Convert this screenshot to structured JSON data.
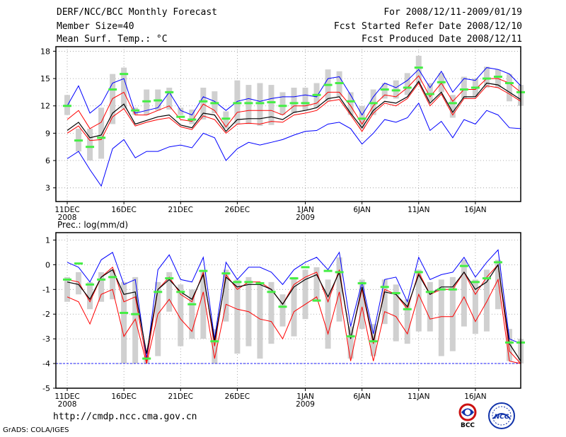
{
  "header": {
    "title": "DERF/NCC/BCC Monthly Forecast",
    "member_size": "Member Size=40",
    "variable": "Mean Surf. Temp.: °C",
    "period": "For 2008/12/11-2009/01/19",
    "refer_date": "Fcst Started Refer Date 2008/12/10",
    "produced_date": "Fcst Produced Date 2008/12/11"
  },
  "footer": {
    "url": "http://cmdp.ncc.cma.gov.cn",
    "credit": "GrADS: COLA/IGES"
  },
  "logos": {
    "bcc": "BCC",
    "ncc": "NCC"
  },
  "colors": {
    "max_min": "#0000ff",
    "spread": "#ff0000",
    "mean": "#000000",
    "obs_mark": "#44ee44",
    "box": "#d0d0d0"
  },
  "chart_data": [
    {
      "type": "line",
      "title": "Mean Surf. Temp.: °C",
      "xlabel": "",
      "ylabel": "",
      "x_tick_labels": [
        {
          "day": 0,
          "label": "11DEC",
          "sub": "2008"
        },
        {
          "day": 5,
          "label": "16DEC",
          "sub": ""
        },
        {
          "day": 10,
          "label": "21DEC",
          "sub": ""
        },
        {
          "day": 15,
          "label": "26DEC",
          "sub": ""
        },
        {
          "day": 21,
          "label": "1JAN",
          "sub": "2009"
        },
        {
          "day": 26,
          "label": "6JAN",
          "sub": ""
        },
        {
          "day": 31,
          "label": "11JAN",
          "sub": ""
        },
        {
          "day": 36,
          "label": "16JAN",
          "sub": ""
        }
      ],
      "xlim": [
        -1,
        40
      ],
      "ylim": [
        1.5,
        18.5
      ],
      "yticks": [
        3,
        6,
        9,
        12,
        15,
        18
      ],
      "grid": true,
      "series": [
        {
          "name": "max",
          "color": "#0000ff",
          "values": [
            12.0,
            14.2,
            11.2,
            12.2,
            14.5,
            15.0,
            11.2,
            11.5,
            11.8,
            13.5,
            11.5,
            11.0,
            13.0,
            12.5,
            11.5,
            12.5,
            12.8,
            12.5,
            12.8,
            13.0,
            13.0,
            13.2,
            13.0,
            15.0,
            15.2,
            13.2,
            11.0,
            13.0,
            14.5,
            14.0,
            14.8,
            16.0,
            14.0,
            15.8,
            13.5,
            15.0,
            14.8,
            16.2,
            16.0,
            15.5,
            14.2
          ]
        },
        {
          "name": "upper",
          "color": "#ff0000",
          "values": [
            10.5,
            11.5,
            9.5,
            10.2,
            12.8,
            13.5,
            11.0,
            11.0,
            11.5,
            12.0,
            10.5,
            10.3,
            12.2,
            11.5,
            9.7,
            11.3,
            11.5,
            11.5,
            11.5,
            11.0,
            12.0,
            12.0,
            12.3,
            13.5,
            13.5,
            12.0,
            10.0,
            12.0,
            13.2,
            13.0,
            14.0,
            15.3,
            13.0,
            14.5,
            12.5,
            13.8,
            13.8,
            15.0,
            15.0,
            14.5,
            13.5
          ]
        },
        {
          "name": "mean",
          "color": "#000000",
          "values": [
            9.3,
            10.2,
            8.5,
            8.8,
            11.2,
            12.2,
            10.0,
            10.4,
            10.8,
            11.0,
            9.9,
            9.6,
            11.2,
            11.0,
            9.2,
            10.5,
            10.6,
            10.6,
            10.8,
            10.5,
            11.3,
            11.5,
            11.8,
            12.8,
            13.0,
            11.2,
            9.6,
            11.5,
            12.5,
            12.3,
            13.0,
            14.7,
            12.3,
            13.5,
            11.3,
            13.0,
            13.0,
            14.5,
            14.3,
            13.5,
            12.7
          ]
        },
        {
          "name": "lower",
          "color": "#ff0000",
          "values": [
            9.0,
            9.8,
            8.2,
            8.3,
            10.8,
            11.7,
            9.8,
            10.2,
            10.5,
            10.7,
            9.7,
            9.4,
            10.9,
            10.5,
            9.0,
            10.0,
            10.1,
            10.0,
            10.3,
            10.2,
            11.0,
            11.2,
            11.5,
            12.5,
            12.7,
            11.0,
            9.2,
            11.2,
            12.3,
            12.0,
            12.8,
            14.5,
            12.0,
            13.3,
            11.0,
            12.8,
            12.8,
            14.2,
            14.0,
            13.3,
            12.5
          ]
        },
        {
          "name": "min",
          "color": "#0000ff",
          "values": [
            6.2,
            7.0,
            5.0,
            3.2,
            7.3,
            8.3,
            6.3,
            7.0,
            7.0,
            7.5,
            7.7,
            7.4,
            9.0,
            8.5,
            6.0,
            7.3,
            8.0,
            7.7,
            8.0,
            8.3,
            8.8,
            9.2,
            9.3,
            10.0,
            10.2,
            9.5,
            7.8,
            9.0,
            10.5,
            10.2,
            10.7,
            12.3,
            9.3,
            10.3,
            8.5,
            10.5,
            10.0,
            11.5,
            11.0,
            9.6,
            9.5
          ]
        },
        {
          "name": "observed",
          "color": "#44ee44",
          "values": [
            12.0,
            8.2,
            7.5,
            8.5,
            13.8,
            15.5,
            11.5,
            12.5,
            12.6,
            13.5,
            10.8,
            10.5,
            12.5,
            12.3,
            10.6,
            12.3,
            12.3,
            12.3,
            12.4,
            12.0,
            12.3,
            12.3,
            13.2,
            14.3,
            14.5,
            12.5,
            10.6,
            12.3,
            13.8,
            13.7,
            14.0,
            16.2,
            13.3,
            14.6,
            12.3,
            13.8,
            14.0,
            15.0,
            15.2,
            14.5,
            13.5
          ]
        }
      ],
      "boxes": [
        [
          11,
          13.2
        ],
        [
          7,
          9.5
        ],
        [
          6,
          9.5
        ],
        [
          6.2,
          11.8
        ],
        [
          10,
          15.5
        ],
        [
          11.7,
          16.2
        ],
        [
          11,
          11.8
        ],
        [
          11,
          13.8
        ],
        [
          11.5,
          13.8
        ],
        [
          11.6,
          14.0
        ],
        [
          11.0,
          11.8
        ],
        [
          10,
          11.6
        ],
        [
          10.5,
          14.0
        ],
        [
          11.2,
          13.6
        ],
        [
          9.5,
          11.4
        ],
        [
          10,
          14.8
        ],
        [
          10,
          14.3
        ],
        [
          9.8,
          14.5
        ],
        [
          9.9,
          14.3
        ],
        [
          11.0,
          13.5
        ],
        [
          11.2,
          14.0
        ],
        [
          11.5,
          14.0
        ],
        [
          11.8,
          14.5
        ],
        [
          12.5,
          16.0
        ],
        [
          13.0,
          15.8
        ],
        [
          11.0,
          13.5
        ],
        [
          9.5,
          12.0
        ],
        [
          11.0,
          13.8
        ],
        [
          12.8,
          14.5
        ],
        [
          12.8,
          14.8
        ],
        [
          13.2,
          15.6
        ],
        [
          14.5,
          17.5
        ],
        [
          12.5,
          14.5
        ],
        [
          13.5,
          15.6
        ],
        [
          10.7,
          13.2
        ],
        [
          12.8,
          15.2
        ],
        [
          13.0,
          15.0
        ],
        [
          14.0,
          16.3
        ],
        [
          14.0,
          16.0
        ],
        [
          12.5,
          15.5
        ],
        [
          12.0,
          14.3
        ]
      ]
    },
    {
      "type": "line",
      "title": "Prec.: log(mm/d)",
      "xlabel": "",
      "ylabel": "",
      "x_tick_labels": [
        {
          "day": 0,
          "label": "11DEC",
          "sub": "2008"
        },
        {
          "day": 5,
          "label": "16DEC",
          "sub": ""
        },
        {
          "day": 10,
          "label": "21DEC",
          "sub": ""
        },
        {
          "day": 15,
          "label": "26DEC",
          "sub": ""
        },
        {
          "day": 21,
          "label": "1JAN",
          "sub": "2009"
        },
        {
          "day": 26,
          "label": "6JAN",
          "sub": ""
        },
        {
          "day": 31,
          "label": "11JAN",
          "sub": ""
        },
        {
          "day": 36,
          "label": "16JAN",
          "sub": ""
        }
      ],
      "xlim": [
        -1,
        40
      ],
      "ylim": [
        -5,
        1.3
      ],
      "yticks": [
        -5,
        -4,
        -3,
        -2,
        -1,
        0,
        1
      ],
      "grid": true,
      "baseline": -4,
      "series": [
        {
          "name": "max",
          "color": "#0000ff",
          "values": [
            0.1,
            -0.1,
            -0.7,
            0.2,
            0.5,
            -0.8,
            -0.6,
            -3.8,
            -0.2,
            0.4,
            -0.6,
            -0.7,
            0.3,
            -3.0,
            0.1,
            -0.6,
            -0.1,
            -0.1,
            -0.3,
            -0.8,
            -0.2,
            0.1,
            0.3,
            -0.2,
            0.5,
            -2.5,
            -0.7,
            -2.8,
            -0.6,
            -0.5,
            -1.5,
            0.3,
            -0.6,
            -0.4,
            -0.3,
            0.3,
            -0.5,
            0.1,
            0.6,
            -3.0,
            -3.2
          ]
        },
        {
          "name": "upper",
          "color": "#ff0000",
          "values": [
            -0.6,
            -0.7,
            -1.5,
            -0.5,
            -0.1,
            -1.5,
            -1.3,
            -3.9,
            -1.0,
            -0.5,
            -1.2,
            -1.5,
            -0.3,
            -3.3,
            -0.4,
            -1.0,
            -0.7,
            -0.7,
            -1.0,
            -1.6,
            -0.8,
            -0.5,
            -0.3,
            -1.5,
            -0.2,
            -3.0,
            -1.0,
            -3.2,
            -1.0,
            -1.2,
            -1.8,
            -0.3,
            -1.2,
            -1.0,
            -1.0,
            -0.3,
            -1.2,
            -0.5,
            0.0,
            -3.5,
            -4.0
          ]
        },
        {
          "name": "mean",
          "color": "#000000",
          "values": [
            -0.7,
            -0.8,
            -1.4,
            -0.5,
            -0.2,
            -1.2,
            -1.1,
            -3.6,
            -1.0,
            -0.6,
            -1.1,
            -1.4,
            -0.4,
            -3.1,
            -0.5,
            -0.9,
            -0.8,
            -0.8,
            -1.0,
            -1.6,
            -0.9,
            -0.6,
            -0.4,
            -1.3,
            -0.3,
            -3.0,
            -0.9,
            -3.1,
            -1.1,
            -1.2,
            -1.7,
            -0.4,
            -1.2,
            -0.9,
            -0.9,
            -0.3,
            -1.0,
            -0.7,
            0.0,
            -3.2,
            -3.9
          ]
        },
        {
          "name": "lower",
          "color": "#ff0000",
          "values": [
            -1.3,
            -1.5,
            -2.4,
            -1.2,
            -1.0,
            -2.9,
            -2.2,
            -4.0,
            -2.0,
            -1.4,
            -2.2,
            -2.7,
            -1.1,
            -3.8,
            -1.6,
            -1.8,
            -1.9,
            -2.2,
            -2.3,
            -3.0,
            -1.9,
            -1.6,
            -1.3,
            -2.8,
            -1.1,
            -3.9,
            -1.7,
            -3.9,
            -1.9,
            -2.1,
            -2.8,
            -1.2,
            -2.2,
            -2.1,
            -2.1,
            -1.3,
            -2.3,
            -1.5,
            -0.6,
            -3.9,
            -4.0
          ]
        },
        {
          "name": "min",
          "color": "#0000ff",
          "values": [
            -4,
            -4,
            -4,
            -4,
            -4,
            -4,
            -4,
            -4,
            -4,
            -4,
            -4,
            -4,
            -4,
            -4,
            -4,
            -4,
            -4,
            -4,
            -4,
            -4,
            -4,
            -4,
            -4,
            -4,
            -4,
            -4,
            -4,
            -4,
            -4,
            -4,
            -4,
            -4,
            -4,
            -4,
            -4,
            -4,
            -4,
            -4,
            -4,
            -4,
            -4
          ]
        },
        {
          "name": "observed",
          "color": "#44ee44",
          "values": [
            -0.6,
            0.05,
            -0.8,
            -0.6,
            -0.5,
            -1.95,
            -2.0,
            -3.8,
            -1.1,
            -0.55,
            -1.1,
            -1.6,
            -0.25,
            -3.1,
            -0.35,
            -0.7,
            -0.7,
            -0.75,
            -1.1,
            -1.7,
            -0.55,
            -0.1,
            -1.45,
            -0.25,
            -0.3,
            -2.9,
            -0.75,
            -3.1,
            -0.9,
            -1.15,
            -1.8,
            -0.3,
            -1.1,
            -1.0,
            -1.0,
            -0.05,
            -0.7,
            -0.55,
            0.1,
            -3.15,
            -3.15
          ]
        }
      ],
      "boxes": [
        [
          -1.5,
          -0.5
        ],
        [
          -1.2,
          -0.3
        ],
        [
          -1.8,
          -0.7
        ],
        [
          -1.5,
          -0.3
        ],
        [
          -1.4,
          -0.2
        ],
        [
          -4.0,
          -0.7
        ],
        [
          -4.0,
          -0.5
        ],
        [
          -4.0,
          -3.7
        ],
        [
          -3.7,
          -0.7
        ],
        [
          -1.9,
          -0.3
        ],
        [
          -3.3,
          -0.8
        ],
        [
          -3.0,
          -1.0
        ],
        [
          -3.0,
          -0.3
        ],
        [
          -4.0,
          -2.6
        ],
        [
          -2.3,
          -0.2
        ],
        [
          -3.6,
          -0.6
        ],
        [
          -3.3,
          -0.5
        ],
        [
          -3.8,
          -0.7
        ],
        [
          -3.2,
          -0.7
        ],
        [
          -2.5,
          -1.2
        ],
        [
          -2.9,
          -0.5
        ],
        [
          -2.2,
          -0.2
        ],
        [
          -1.5,
          -0.1
        ],
        [
          -3.4,
          -0.6
        ],
        [
          -2.3,
          0.3
        ],
        [
          -3.8,
          -2.5
        ],
        [
          -2.6,
          -0.6
        ],
        [
          -3.7,
          -2.4
        ],
        [
          -2.4,
          -0.6
        ],
        [
          -3.1,
          -0.8
        ],
        [
          -3.2,
          -1.4
        ],
        [
          -2.7,
          -0.2
        ],
        [
          -2.7,
          -0.7
        ],
        [
          -3.7,
          -0.6
        ],
        [
          -3.5,
          -0.5
        ],
        [
          -2.5,
          0.2
        ],
        [
          -2.8,
          -0.6
        ],
        [
          -2.7,
          -0.2
        ],
        [
          -1.8,
          0.2
        ],
        [
          -3.9,
          -2.6
        ],
        [
          -4.0,
          -3.0
        ]
      ]
    }
  ]
}
